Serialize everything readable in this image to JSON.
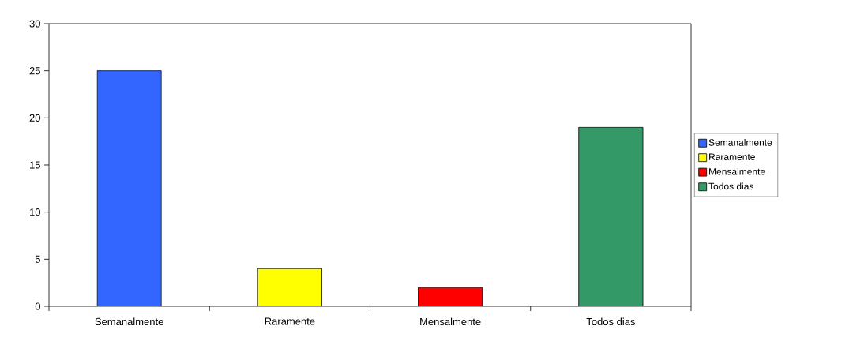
{
  "chart_data": {
    "type": "bar",
    "categories": [
      "Semanalmente",
      "Raramente",
      "Mensalmente",
      "Todos dias"
    ],
    "series": [
      {
        "name": "Semanalmente",
        "color": "#3366ff",
        "values": [
          25,
          null,
          null,
          null
        ]
      },
      {
        "name": "Raramente",
        "color": "#ffff00",
        "values": [
          null,
          4,
          null,
          null
        ]
      },
      {
        "name": "Mensalmente",
        "color": "#ff0000",
        "values": [
          null,
          null,
          2,
          null
        ]
      },
      {
        "name": "Todos dias",
        "color": "#339966",
        "values": [
          null,
          null,
          null,
          19
        ]
      }
    ],
    "ylim": [
      0,
      30
    ],
    "yticks": [
      0,
      5,
      10,
      15,
      20,
      25,
      30
    ],
    "legend": "right"
  }
}
